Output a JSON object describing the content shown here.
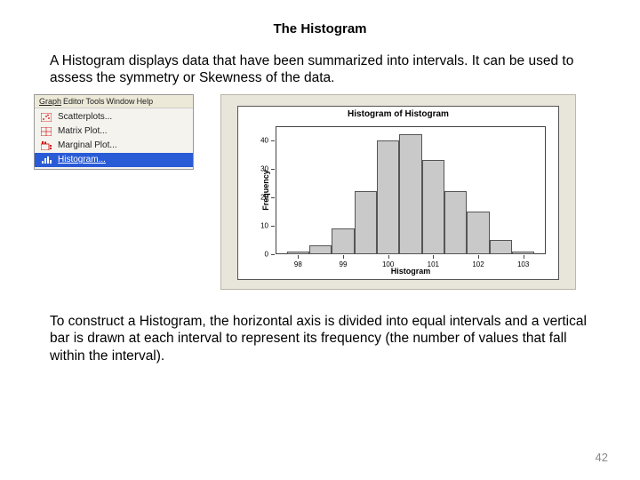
{
  "title": "The Histogram",
  "intro": "A Histogram displays data that have been summarized into intervals. It can be used to assess the symmetry or Skewness of the data.",
  "outro": "To construct a Histogram, the horizontal axis is divided into equal intervals and a vertical bar is drawn at each interval to represent its frequency (the number of values that fall within the interval).",
  "page_number": "42",
  "menu": {
    "bar": [
      "Graph",
      "Editor",
      "Tools",
      "Window",
      "Help"
    ],
    "items": [
      {
        "label": "Scatterplots...",
        "icon": "scatter",
        "selected": false
      },
      {
        "label": "Matrix Plot...",
        "icon": "matrix",
        "selected": false
      },
      {
        "label": "Marginal Plot...",
        "icon": "marginal",
        "selected": false
      },
      {
        "label": "Histogram...",
        "icon": "histogram",
        "selected": true
      }
    ]
  },
  "chart": {
    "type": "histogram",
    "title": "Histogram of Histogram",
    "xlabel": "Histogram",
    "ylabel": "Frequency",
    "xlim": [
      97.5,
      103.5
    ],
    "ylim": [
      0,
      45
    ],
    "yticks": [
      0,
      10,
      20,
      30,
      40
    ],
    "xtick_labels": [
      98,
      99,
      100,
      101,
      102,
      103
    ],
    "bin_edges": [
      97.75,
      98.25,
      98.75,
      99.25,
      99.75,
      100.25,
      100.75,
      101.25,
      101.75,
      102.25,
      102.75,
      103.25
    ],
    "counts": [
      1,
      3,
      9,
      22,
      40,
      42,
      33,
      22,
      15,
      5,
      1
    ],
    "bar_fill": "#c9c9c9",
    "bar_border": "#555555",
    "panel_bg": "#e8e6da",
    "plot_bg": "#ffffff",
    "axis_color": "#444444",
    "title_fontsize": 10,
    "label_fontsize": 9,
    "tick_fontsize": 8
  }
}
